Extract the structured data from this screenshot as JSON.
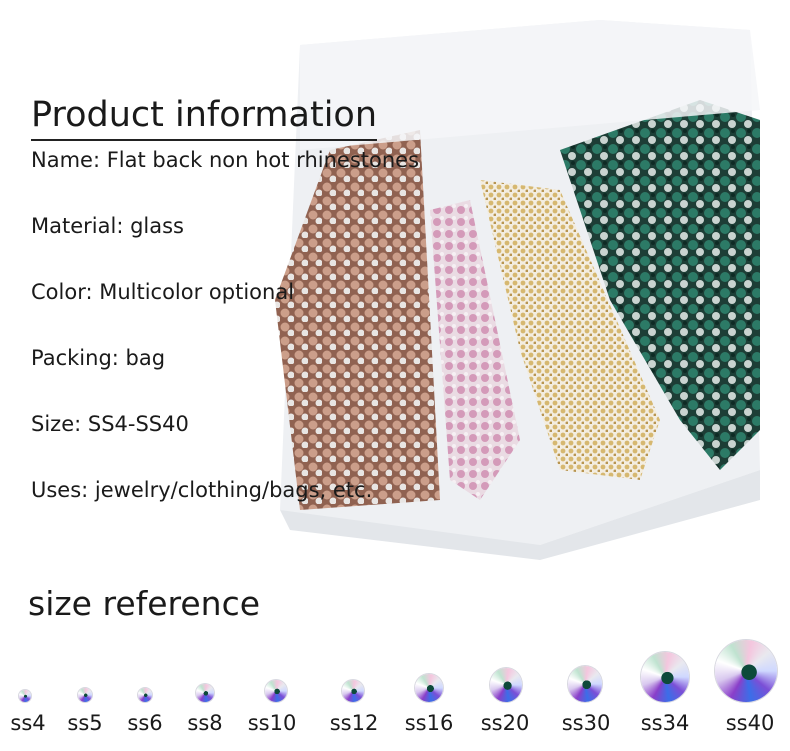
{
  "title": "Product information",
  "info": [
    "Name: Flat back non hot rhinestones",
    "Material: glass",
    "Color: Multicolor optional",
    "Packing: bag",
    "Size: SS4-SS40",
    "Uses: jewelry/clothing/bags, etc."
  ],
  "size_reference": {
    "heading": "size reference",
    "sizes": [
      "ss4",
      "ss5",
      "ss6",
      "ss8",
      "ss10",
      "ss12",
      "ss16",
      "ss20",
      "ss30",
      "ss34",
      "ss40"
    ]
  },
  "colors": {
    "bag1": "#a9765e",
    "bag2": "#d9a8c4",
    "bag3": "#d8c07a",
    "bag4": "#1f5a4c"
  }
}
